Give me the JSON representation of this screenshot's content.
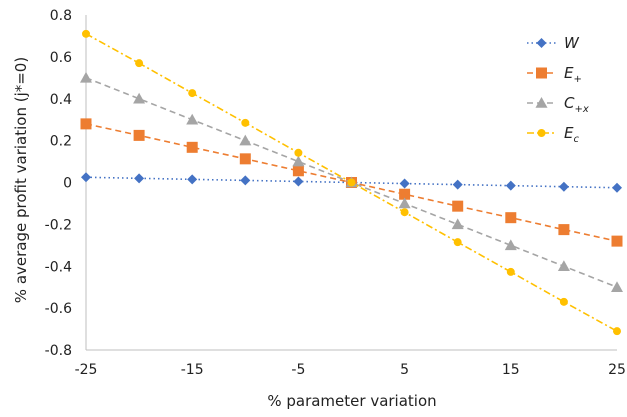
{
  "chart_data": {
    "type": "line",
    "xlabel": "% parameter variation",
    "ylabel": "% average profit variation (j*=0)",
    "xlim": [
      -25,
      25
    ],
    "ylim": [
      -0.8,
      0.8
    ],
    "x_ticks": [
      "-25",
      "-15",
      "-5",
      "5",
      "15",
      "25"
    ],
    "y_ticks": [
      "-0.8",
      "-0.6",
      "-0.4",
      "-0.2",
      "0",
      "0.2",
      "0.4",
      "0.6",
      "0.8"
    ],
    "legend_position": "top-right",
    "grid": false,
    "x": [
      -25,
      -20,
      -15,
      -10,
      -5,
      0,
      5,
      10,
      15,
      20,
      25
    ],
    "series": [
      {
        "name": "W",
        "label_main": "W",
        "label_sub": "",
        "color": "#4472c4",
        "marker": "diamond",
        "dash": "dotted",
        "values": [
          0.025,
          0.02,
          0.015,
          0.01,
          0.005,
          0.0,
          -0.005,
          -0.01,
          -0.015,
          -0.02,
          -0.025
        ]
      },
      {
        "name": "E+",
        "label_main": "E",
        "label_sub": "+",
        "color": "#ed7d31",
        "marker": "square",
        "dash": "dashed",
        "values": [
          0.28,
          0.225,
          0.168,
          0.113,
          0.056,
          0.0,
          -0.056,
          -0.113,
          -0.168,
          -0.225,
          -0.28
        ]
      },
      {
        "name": "C+x",
        "label_main": "C",
        "label_sub": "+x",
        "color": "#a5a5a5",
        "marker": "triangle",
        "dash": "dashed",
        "values": [
          0.5,
          0.4,
          0.3,
          0.2,
          0.1,
          0.0,
          -0.1,
          -0.2,
          -0.3,
          -0.4,
          -0.5
        ]
      },
      {
        "name": "Ec",
        "label_main": "E",
        "label_sub": "c",
        "color": "#ffc000",
        "marker": "circle",
        "dash": "dashdot",
        "values": [
          0.71,
          0.57,
          0.427,
          0.285,
          0.142,
          0.0,
          -0.142,
          -0.285,
          -0.427,
          -0.57,
          -0.71
        ]
      }
    ]
  }
}
